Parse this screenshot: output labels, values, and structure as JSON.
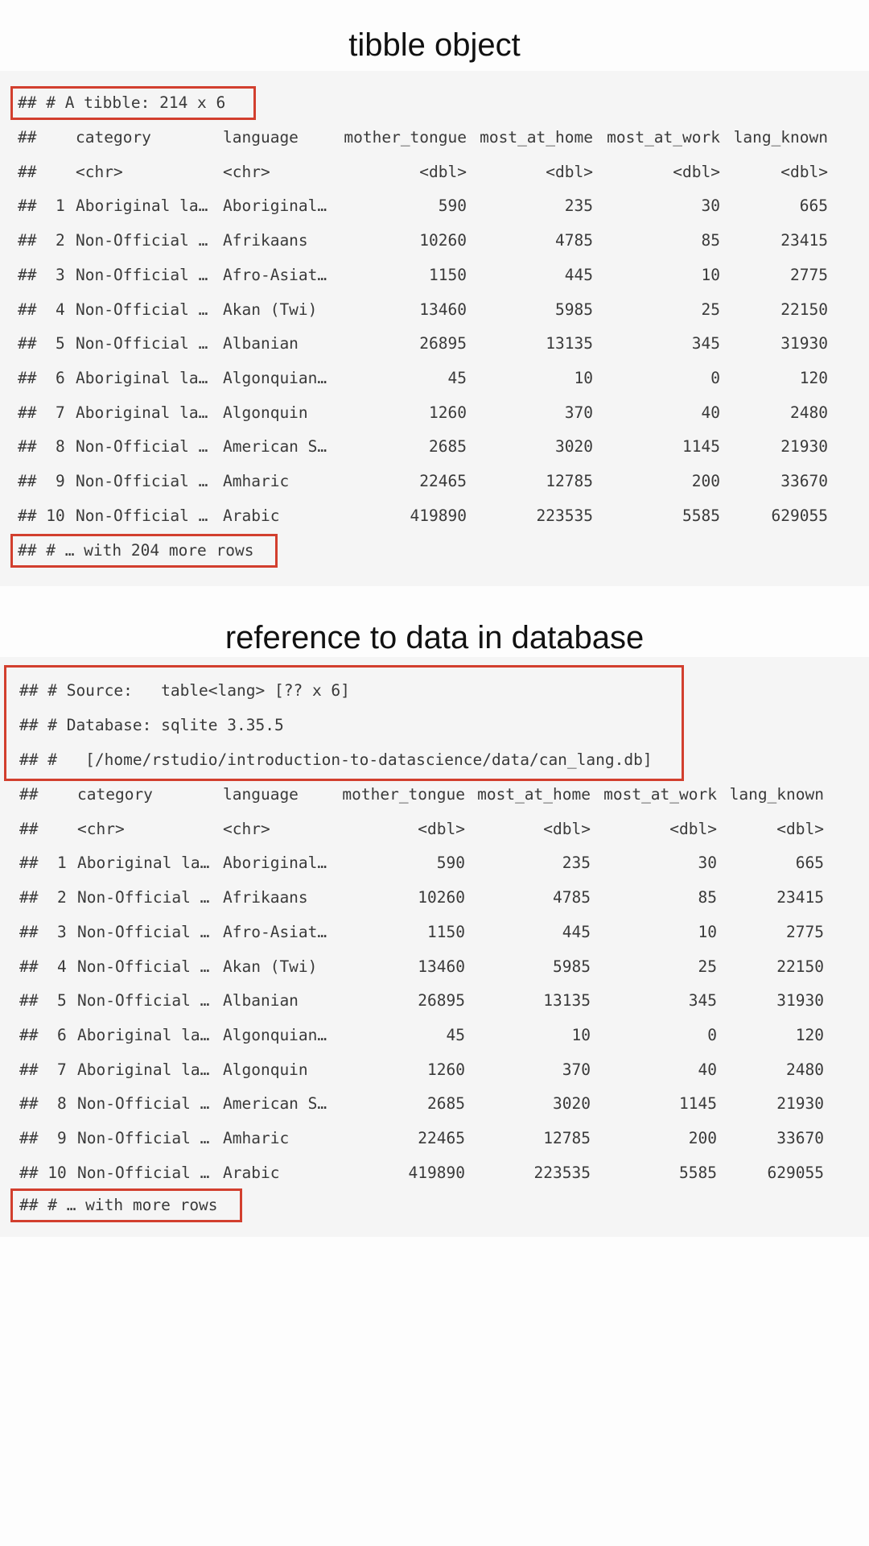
{
  "sections": [
    {
      "title": "tibble object",
      "meta_lines": [
        "## # A tibble: 214 x 6"
      ],
      "header": [
        "##",
        "category",
        "language",
        "mother_tongue",
        "most_at_home",
        "most_at_work",
        "lang_known"
      ],
      "types": [
        "##",
        "<chr>",
        "<chr>",
        "<dbl>",
        "<dbl>",
        "<dbl>",
        "<dbl>"
      ],
      "rows": [
        [
          "##  1",
          "Aboriginal la…",
          "Aboriginal…",
          "590",
          "235",
          "30",
          "665"
        ],
        [
          "##  2",
          "Non-Official …",
          "Afrikaans",
          "10260",
          "4785",
          "85",
          "23415"
        ],
        [
          "##  3",
          "Non-Official …",
          "Afro-Asiat…",
          "1150",
          "445",
          "10",
          "2775"
        ],
        [
          "##  4",
          "Non-Official …",
          "Akan (Twi)",
          "13460",
          "5985",
          "25",
          "22150"
        ],
        [
          "##  5",
          "Non-Official …",
          "Albanian",
          "26895",
          "13135",
          "345",
          "31930"
        ],
        [
          "##  6",
          "Aboriginal la…",
          "Algonquian…",
          "45",
          "10",
          "0",
          "120"
        ],
        [
          "##  7",
          "Aboriginal la…",
          "Algonquin",
          "1260",
          "370",
          "40",
          "2480"
        ],
        [
          "##  8",
          "Non-Official …",
          "American S…",
          "2685",
          "3020",
          "1145",
          "21930"
        ],
        [
          "##  9",
          "Non-Official …",
          "Amharic",
          "22465",
          "12785",
          "200",
          "33670"
        ],
        [
          "## 10",
          "Non-Official …",
          "Arabic",
          "419890",
          "223535",
          "5585",
          "629055"
        ]
      ],
      "footer": "## # … with 204 more rows"
    },
    {
      "title": "reference to data in database",
      "meta_lines": [
        "## # Source:   table<lang> [?? x 6]",
        "## # Database: sqlite 3.35.5",
        "## #   [/home/rstudio/introduction-to-datascience/data/can_lang.db]"
      ],
      "header": [
        "##",
        "category",
        "language",
        "mother_tongue",
        "most_at_home",
        "most_at_work",
        "lang_known"
      ],
      "types": [
        "##",
        "<chr>",
        "<chr>",
        "<dbl>",
        "<dbl>",
        "<dbl>",
        "<dbl>"
      ],
      "rows": [
        [
          "##  1",
          "Aboriginal la…",
          "Aboriginal…",
          "590",
          "235",
          "30",
          "665"
        ],
        [
          "##  2",
          "Non-Official …",
          "Afrikaans",
          "10260",
          "4785",
          "85",
          "23415"
        ],
        [
          "##  3",
          "Non-Official …",
          "Afro-Asiat…",
          "1150",
          "445",
          "10",
          "2775"
        ],
        [
          "##  4",
          "Non-Official …",
          "Akan (Twi)",
          "13460",
          "5985",
          "25",
          "22150"
        ],
        [
          "##  5",
          "Non-Official …",
          "Albanian",
          "26895",
          "13135",
          "345",
          "31930"
        ],
        [
          "##  6",
          "Aboriginal la…",
          "Algonquian…",
          "45",
          "10",
          "0",
          "120"
        ],
        [
          "##  7",
          "Aboriginal la…",
          "Algonquin",
          "1260",
          "370",
          "40",
          "2480"
        ],
        [
          "##  8",
          "Non-Official …",
          "American S…",
          "2685",
          "3020",
          "1145",
          "21930"
        ],
        [
          "##  9",
          "Non-Official …",
          "Amharic",
          "22465",
          "12785",
          "200",
          "33670"
        ],
        [
          "## 10",
          "Non-Official …",
          "Arabic",
          "419890",
          "223535",
          "5585",
          "629055"
        ]
      ],
      "footer": "## # … with more rows"
    }
  ],
  "colors": {
    "highlight_border": "#d23f2e",
    "block_background": "#f5f5f5",
    "text": "#3a3a3a"
  }
}
